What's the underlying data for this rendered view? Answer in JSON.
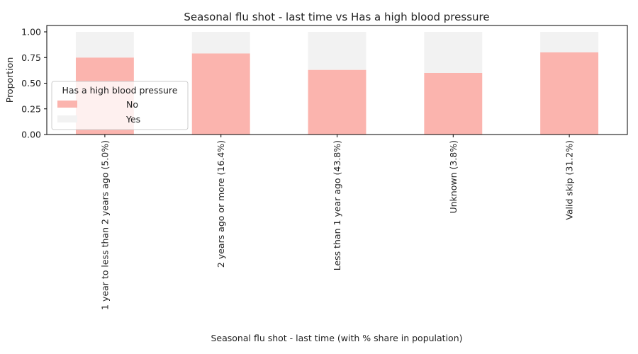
{
  "chart_data": {
    "type": "bar",
    "stacked": true,
    "title": "Seasonal flu shot - last time vs Has a high blood pressure",
    "xlabel": "Seasonal flu shot - last time (with % share in population)",
    "ylabel": "Proportion",
    "ylim": [
      0,
      1.0
    ],
    "yticks": [
      "0.00",
      "0.25",
      "0.50",
      "0.75",
      "1.00"
    ],
    "categories": [
      "1 year to less than 2 years ago (5.0%)",
      "2 years ago or more (16.4%)",
      "Less than 1 year ago (43.8%)",
      "Unknown (3.8%)",
      "Valid skip (31.2%)"
    ],
    "series": [
      {
        "name": "No",
        "values": [
          0.75,
          0.79,
          0.63,
          0.6,
          0.8
        ],
        "color": "#fbb4ae"
      },
      {
        "name": "Yes",
        "values": [
          0.25,
          0.21,
          0.37,
          0.4,
          0.2
        ],
        "color": "#f2f2f2"
      }
    ],
    "legend": {
      "title": "Has a high blood pressure",
      "placement": "center-left"
    },
    "grid": false
  }
}
